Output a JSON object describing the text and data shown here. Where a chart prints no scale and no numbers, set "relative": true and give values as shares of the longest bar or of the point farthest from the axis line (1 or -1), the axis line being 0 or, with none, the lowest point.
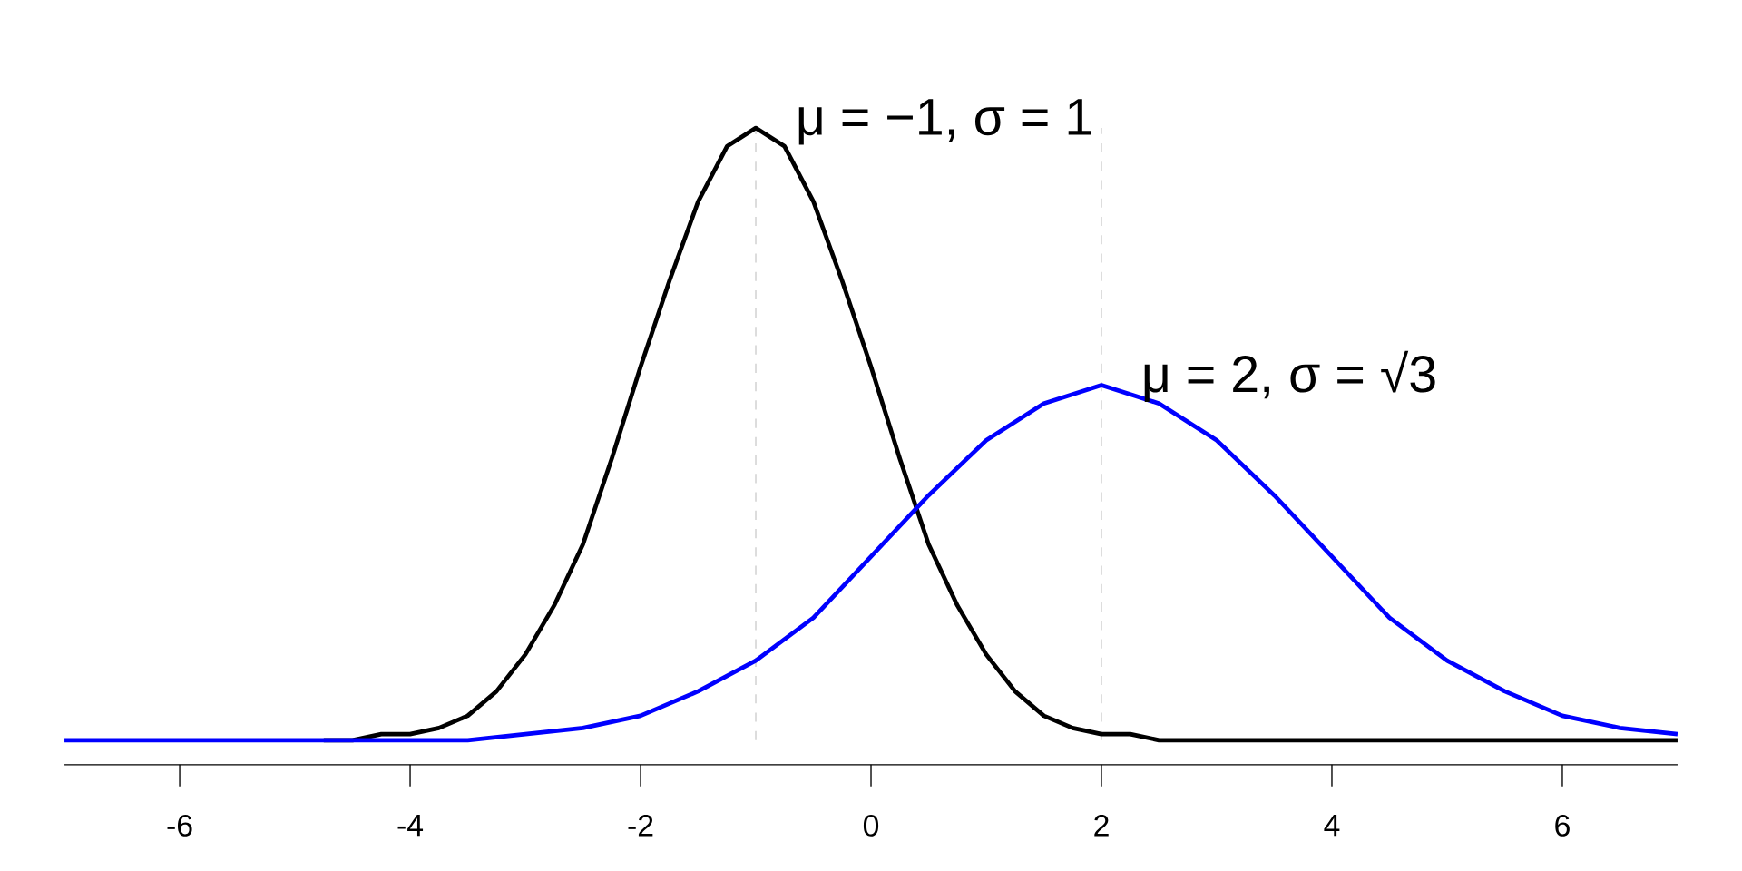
{
  "chart_data": {
    "type": "line",
    "relative": true,
    "xlim": [
      -7,
      7
    ],
    "xticks": [
      -6,
      -4,
      -2,
      0,
      2,
      4,
      6
    ],
    "tick_labels": "x",
    "line_style": "solid",
    "series": [
      {
        "color": "#000000",
        "x": [
          -4.75,
          -4.5,
          -4.25,
          -4,
          -3.75,
          -3.5,
          -3.25,
          -3,
          -2.75,
          -2.5,
          -2.25,
          -2,
          -1.75,
          -1.5,
          -1.25,
          -1,
          -0.75,
          -0.5,
          -0.25,
          0,
          0.25,
          0.5,
          0.75,
          1,
          1.25,
          1.5,
          1.75,
          2,
          2.25,
          2.5,
          2.75,
          3,
          4,
          5,
          6,
          7
        ],
        "values": [
          0,
          0,
          0.01,
          0.01,
          0.02,
          0.04,
          0.08,
          0.14,
          0.22,
          0.32,
          0.46,
          0.61,
          0.75,
          0.88,
          0.97,
          1,
          0.97,
          0.88,
          0.75,
          0.61,
          0.46,
          0.32,
          0.22,
          0.14,
          0.08,
          0.04,
          0.02,
          0.01,
          0.01,
          0,
          0,
          0,
          0,
          0,
          0,
          0
        ]
      },
      {
        "color": "#0000ff",
        "x": [
          -7,
          -6,
          -5,
          -4,
          -3.5,
          -3,
          -2.5,
          -2,
          -1.5,
          -1,
          -0.5,
          0,
          0.5,
          1,
          1.5,
          2,
          2.5,
          3,
          3.5,
          4,
          4.5,
          5,
          5.5,
          6,
          6.5,
          7
        ],
        "values": [
          0,
          0,
          0,
          0,
          0,
          0.01,
          0.02,
          0.04,
          0.08,
          0.13,
          0.2,
          0.3,
          0.4,
          0.49,
          0.55,
          0.58,
          0.55,
          0.49,
          0.4,
          0.3,
          0.2,
          0.13,
          0.08,
          0.04,
          0.02,
          0.01
        ]
      }
    ],
    "ref_lines": [
      {
        "axis": "x",
        "value": -1,
        "color": "#cccccc",
        "line_style": "dashed"
      },
      {
        "axis": "x",
        "value": 2,
        "color": "#cccccc",
        "line_style": "dashed"
      }
    ],
    "annotations": [
      {
        "text": "μ = −1,  σ = 1",
        "x": -1,
        "y": 1
      },
      {
        "text": "μ = 2,  σ = √3",
        "x": 2,
        "y": 0.58
      }
    ]
  }
}
